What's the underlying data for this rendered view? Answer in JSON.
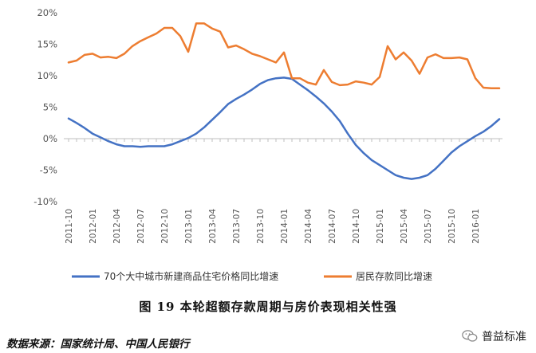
{
  "caption": "图 19 本轮超额存款周期与房价表现相关性强",
  "source": "数据来源：国家统计局、中国人民银行",
  "watermark": {
    "text": "普益标准",
    "icon": "wechat-icon"
  },
  "colors": {
    "series1": "#4472C4",
    "series2": "#ED7D31"
  },
  "chart_data": {
    "type": "line",
    "ylim": [
      -0.1,
      0.2
    ],
    "yticks": [
      "-10%",
      "-5%",
      "0%",
      "5%",
      "10%",
      "15%",
      "20%"
    ],
    "xtick_labels": [
      "2011-10",
      "2012-01",
      "2012-04",
      "2012-07",
      "2012-10",
      "2013-01",
      "2013-04",
      "2013-07",
      "2013-10",
      "2014-01",
      "2014-04",
      "2014-07",
      "2014-10",
      "2015-01",
      "2015-04",
      "2015-07",
      "2015-10",
      "2016-01"
    ],
    "x": [
      "2011-10",
      "2011-11",
      "2011-12",
      "2012-01",
      "2012-02",
      "2012-03",
      "2012-04",
      "2012-05",
      "2012-06",
      "2012-07",
      "2012-08",
      "2012-09",
      "2012-10",
      "2012-11",
      "2012-12",
      "2013-01",
      "2013-02",
      "2013-03",
      "2013-04",
      "2013-05",
      "2013-06",
      "2013-07",
      "2013-08",
      "2013-09",
      "2013-10",
      "2013-11",
      "2013-12",
      "2014-01",
      "2014-02",
      "2014-03",
      "2014-04",
      "2014-05",
      "2014-06",
      "2014-07",
      "2014-08",
      "2014-09",
      "2014-10",
      "2014-11",
      "2014-12",
      "2015-01",
      "2015-02",
      "2015-03",
      "2015-04",
      "2015-05",
      "2015-06",
      "2015-07",
      "2015-08",
      "2015-09",
      "2015-10",
      "2015-11",
      "2015-12",
      "2016-01",
      "2016-02",
      "2016-03",
      "2016-04"
    ],
    "series": [
      {
        "name": "70个大中城市新建商品住宅价格同比增速",
        "values": [
          0.032,
          0.025,
          0.017,
          0.008,
          0.002,
          -0.004,
          -0.009,
          -0.012,
          -0.012,
          -0.013,
          -0.012,
          -0.012,
          -0.012,
          -0.009,
          -0.004,
          0.001,
          0.008,
          0.018,
          0.03,
          0.042,
          0.055,
          0.063,
          0.07,
          0.078,
          0.087,
          0.093,
          0.096,
          0.097,
          0.095,
          0.086,
          0.077,
          0.067,
          0.056,
          0.043,
          0.028,
          0.008,
          -0.01,
          -0.023,
          -0.034,
          -0.042,
          -0.05,
          -0.058,
          -0.062,
          -0.064,
          -0.062,
          -0.058,
          -0.048,
          -0.035,
          -0.022,
          -0.012,
          -0.004,
          0.004,
          0.011,
          0.02,
          0.031
        ]
      },
      {
        "name": "居民存款同比增速",
        "values": [
          0.121,
          0.124,
          0.133,
          0.135,
          0.129,
          0.13,
          0.128,
          0.135,
          0.147,
          0.155,
          0.161,
          0.167,
          0.176,
          0.176,
          0.163,
          0.138,
          0.183,
          0.183,
          0.175,
          0.17,
          0.145,
          0.148,
          0.142,
          0.135,
          0.131,
          0.126,
          0.121,
          0.137,
          0.096,
          0.096,
          0.089,
          0.086,
          0.109,
          0.09,
          0.085,
          0.086,
          0.091,
          0.089,
          0.086,
          0.098,
          0.147,
          0.126,
          0.137,
          0.124,
          0.103,
          0.129,
          0.134,
          0.128,
          0.128,
          0.129,
          0.126,
          0.096,
          0.081,
          0.08,
          0.08
        ]
      }
    ]
  }
}
